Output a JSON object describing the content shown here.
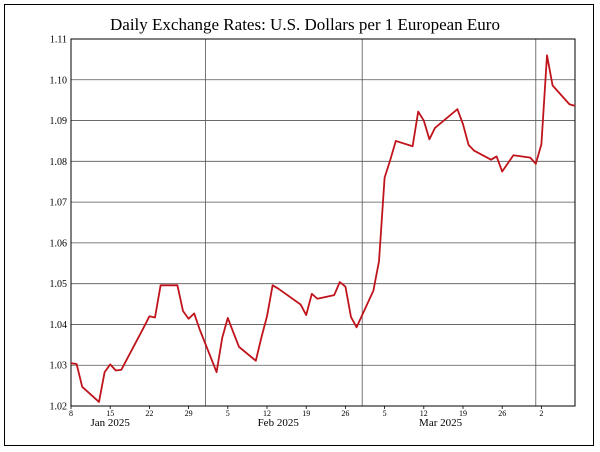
{
  "chart_data": {
    "type": "line",
    "title": "Daily Exchange Rates: U.S. Dollars per 1 European Euro",
    "xlabel": "",
    "ylabel": "",
    "ylim": [
      1.02,
      1.11
    ],
    "yticks": [
      "1.02",
      "1.03",
      "1.04",
      "1.05",
      "1.06",
      "1.07",
      "1.08",
      "1.09",
      "1.10",
      "1.11"
    ],
    "xlim": [
      "2025-01-08",
      "2025-04-08"
    ],
    "x_tick_labels": [
      {
        "date": "2025-01-08",
        "label": "8"
      },
      {
        "date": "2025-01-15",
        "label": "15"
      },
      {
        "date": "2025-01-22",
        "label": "22"
      },
      {
        "date": "2025-01-29",
        "label": "29"
      },
      {
        "date": "2025-02-05",
        "label": "5"
      },
      {
        "date": "2025-02-12",
        "label": "12"
      },
      {
        "date": "2025-02-19",
        "label": "19"
      },
      {
        "date": "2025-02-26",
        "label": "26"
      },
      {
        "date": "2025-03-05",
        "label": "5"
      },
      {
        "date": "2025-03-12",
        "label": "12"
      },
      {
        "date": "2025-03-19",
        "label": "19"
      },
      {
        "date": "2025-03-26",
        "label": "26"
      },
      {
        "date": "2025-04-02",
        "label": "2"
      }
    ],
    "month_boundaries": [
      "2025-02-01",
      "2025-03-01",
      "2025-04-01"
    ],
    "month_labels": [
      {
        "date": "2025-01-15",
        "label": "Jan 2025"
      },
      {
        "date": "2025-02-14",
        "label": "Feb 2025"
      },
      {
        "date": "2025-03-15",
        "label": "Mar 2025"
      }
    ],
    "grid": true,
    "line_color": "#c0141c",
    "series": [
      {
        "x": [
          "2025-01-08",
          "2025-01-09",
          "2025-01-10",
          "2025-01-13",
          "2025-01-14",
          "2025-01-15",
          "2025-01-16",
          "2025-01-17",
          "2025-01-21",
          "2025-01-22",
          "2025-01-23",
          "2025-01-24",
          "2025-01-27",
          "2025-01-28",
          "2025-01-29",
          "2025-01-30",
          "2025-01-31",
          "2025-02-03",
          "2025-02-04",
          "2025-02-05",
          "2025-02-06",
          "2025-02-07",
          "2025-02-10",
          "2025-02-11",
          "2025-02-12",
          "2025-02-13",
          "2025-02-14",
          "2025-02-18",
          "2025-02-19",
          "2025-02-20",
          "2025-02-21",
          "2025-02-24",
          "2025-02-25",
          "2025-02-26",
          "2025-02-27",
          "2025-02-28",
          "2025-03-03",
          "2025-03-04",
          "2025-03-05",
          "2025-03-06",
          "2025-03-07",
          "2025-03-10",
          "2025-03-11",
          "2025-03-12",
          "2025-03-13",
          "2025-03-14",
          "2025-03-18",
          "2025-03-19",
          "2025-03-20",
          "2025-03-21",
          "2025-03-24",
          "2025-03-25",
          "2025-03-26",
          "2025-03-27",
          "2025-03-28",
          "2025-03-31",
          "2025-04-01",
          "2025-04-02",
          "2025-04-03",
          "2025-04-04",
          "2025-04-07",
          "2025-04-08"
        ],
        "values": [
          1.0305,
          1.0303,
          1.0247,
          1.021,
          1.0283,
          1.0302,
          1.0287,
          1.0289,
          1.0393,
          1.042,
          1.0417,
          1.0496,
          1.0496,
          1.0433,
          1.0414,
          1.0427,
          1.0387,
          1.0283,
          1.0367,
          1.0416,
          1.038,
          1.0345,
          1.0311,
          1.0368,
          1.042,
          1.0496,
          1.0488,
          1.0449,
          1.0423,
          1.0475,
          1.0463,
          1.0472,
          1.0504,
          1.0493,
          1.0418,
          1.0393,
          1.0483,
          1.0555,
          1.076,
          1.0803,
          1.085,
          1.0837,
          1.0922,
          1.09,
          1.0854,
          1.0882,
          1.0928,
          1.0891,
          1.084,
          1.0826,
          1.0804,
          1.0812,
          1.0775,
          1.0795,
          1.0815,
          1.0809,
          1.0794,
          1.0842,
          1.106,
          1.0986,
          1.094,
          1.0936
        ]
      }
    ]
  }
}
